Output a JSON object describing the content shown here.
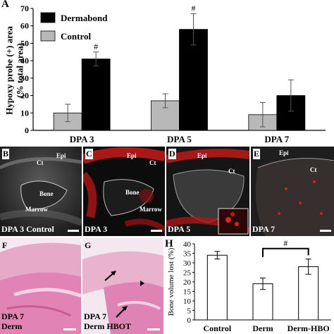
{
  "panelA": {
    "letter": "A",
    "chart_data": {
      "type": "bar",
      "ylabel": "Hypoxy probe (+) area (% total area)",
      "ylabel_lines": [
        "Hypoxy probe (+) area",
        "(% total area)"
      ],
      "categories": [
        "DPA 3",
        "DPA 5",
        "DPA 7"
      ],
      "ylim": [
        0,
        70
      ],
      "yticks": [
        0,
        10,
        20,
        30,
        40,
        50,
        60,
        70
      ],
      "series": [
        {
          "name": "Control",
          "color": "#b8b8b8",
          "values": [
            10,
            17,
            9
          ],
          "errors": [
            5,
            4,
            7
          ]
        },
        {
          "name": "Dermabond",
          "color": "#000000",
          "values": [
            41,
            58,
            20
          ],
          "errors": [
            4,
            9,
            9
          ]
        }
      ],
      "significance": [
        {
          "category": "DPA 3",
          "label": "#"
        },
        {
          "category": "DPA 5",
          "label": "#"
        }
      ]
    }
  },
  "panelB": {
    "letter": "B",
    "labels": {
      "epi": "Epi",
      "ct": "Ct",
      "bone": "Bone",
      "marrow": "Marrow"
    },
    "caption": "DPA 3 Control"
  },
  "panelC": {
    "letter": "C",
    "labels": {
      "epi": "Epi",
      "ct": "Ct",
      "bone": "Bone",
      "marrow": "Marrow"
    },
    "caption": "DPA 3"
  },
  "panelD": {
    "letter": "D",
    "labels": {
      "epi": "Epi",
      "ct": "Ct"
    },
    "caption": "DPA 5"
  },
  "panelE": {
    "letter": "E",
    "labels": {
      "epi": "Epi",
      "ct": "Ct"
    },
    "caption": "DPA 7"
  },
  "panelF": {
    "letter": "F",
    "caption_line1": "DPA 7",
    "caption_line2": "Derm"
  },
  "panelG": {
    "letter": "G",
    "caption_line1": "DPA 7",
    "caption_line2": "Derm HBOT"
  },
  "panelH": {
    "letter": "H",
    "chart_data": {
      "type": "bar",
      "ylabel": "Bone volume lost (%)",
      "categories": [
        "Control",
        "Derm",
        "Derm-HBO"
      ],
      "ylim": [
        0,
        40
      ],
      "yticks": [
        0,
        5,
        10,
        15,
        20,
        25,
        30,
        35,
        40
      ],
      "values": [
        34,
        19,
        28
      ],
      "errors": [
        2,
        3,
        4
      ],
      "significance": [
        {
          "from": "Derm",
          "to": "Derm-HBO",
          "label": "#"
        }
      ]
    }
  }
}
